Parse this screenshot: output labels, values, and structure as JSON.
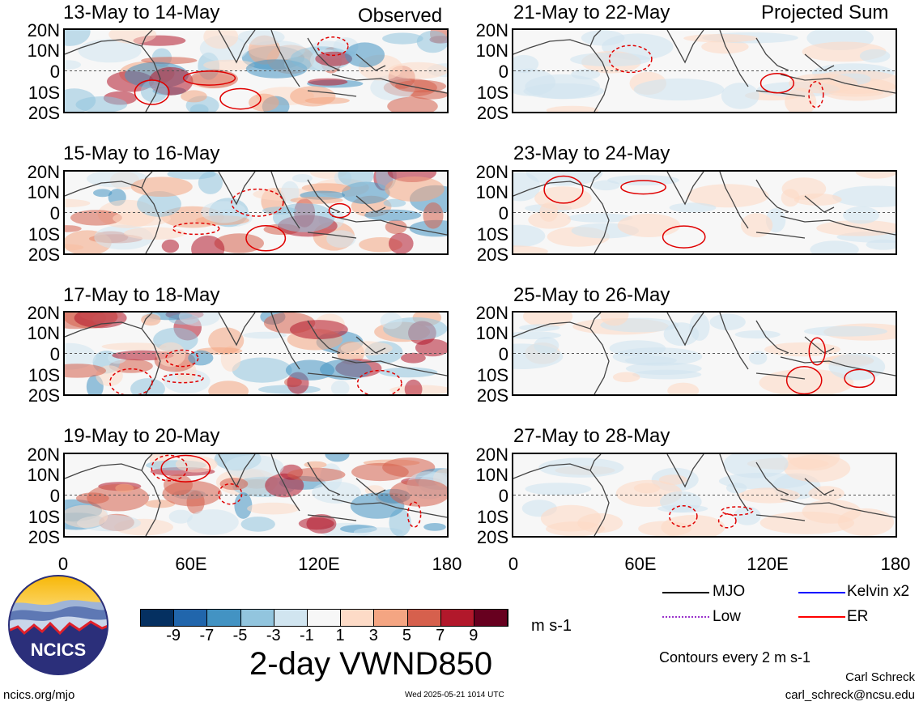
{
  "panels_left": [
    {
      "title": "13-May to 14-May",
      "tag": "Observed"
    },
    {
      "title": "15-May to 16-May",
      "tag": ""
    },
    {
      "title": "17-May to 18-May",
      "tag": ""
    },
    {
      "title": "19-May to 20-May",
      "tag": ""
    }
  ],
  "panels_right": [
    {
      "title": "21-May to 22-May",
      "tag": "Projected Sum"
    },
    {
      "title": "23-May to 24-May",
      "tag": ""
    },
    {
      "title": "25-May to 26-May",
      "tag": ""
    },
    {
      "title": "27-May to 28-May",
      "tag": ""
    }
  ],
  "y_ticks": [
    "20N",
    "10N",
    "0",
    "10S",
    "20S"
  ],
  "x_ticks": [
    "0",
    "60E",
    "120E",
    "180"
  ],
  "colorbar": {
    "ticks": [
      "-9",
      "-7",
      "-5",
      "-3",
      "-1",
      "1",
      "3",
      "5",
      "7",
      "9"
    ],
    "colors": [
      "#053061",
      "#2166ac",
      "#4393c3",
      "#92c5de",
      "#d1e5f0",
      "#f7f7f7",
      "#fddbc7",
      "#f4a582",
      "#d6604d",
      "#b2182b",
      "#67001f"
    ],
    "units": "m s-1"
  },
  "main_title": "2-day VWND850",
  "legend": {
    "items": [
      {
        "label": "MJO",
        "color": "#000000"
      },
      {
        "label": "Kelvin x2",
        "color": "#0000ff"
      },
      {
        "label": "Low",
        "color": "#9932cc"
      },
      {
        "label": "ER",
        "color": "#ff0000"
      }
    ],
    "note": "Contours every 2 m s-1"
  },
  "logo_text": "NCICS",
  "footer": {
    "url": "ncics.org/mjo",
    "timestamp": "Wed 2025-05-21 1014 UTC",
    "author": "Carl Schreck",
    "email": "carl_schreck@ncsu.edu"
  }
}
